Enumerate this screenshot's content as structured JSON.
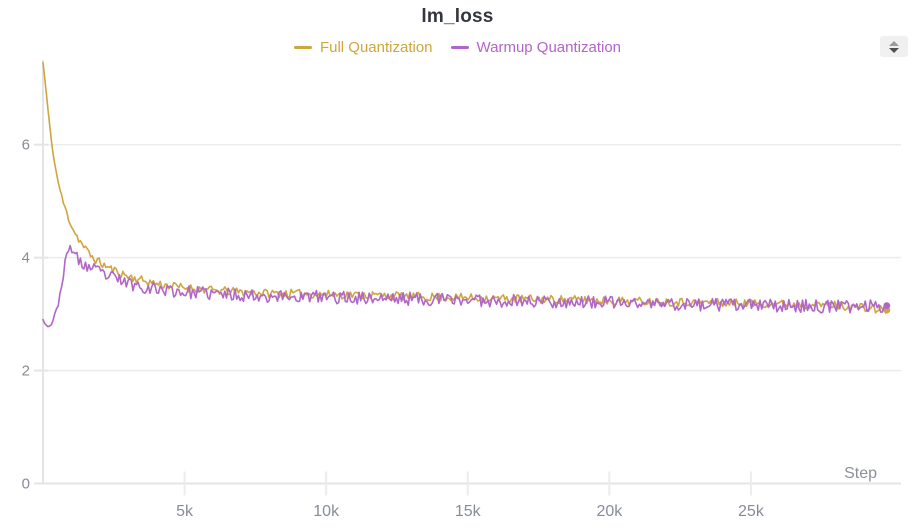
{
  "chart_data": {
    "type": "line",
    "title": "lm_loss",
    "xlabel": "Step",
    "xlim": [
      0,
      30300
    ],
    "ylim": [
      0,
      7.5
    ],
    "grid_on": true,
    "legend_position": "top-center",
    "x_ticks": [
      {
        "value": 5000,
        "label": "5k"
      },
      {
        "value": 10000,
        "label": "10k"
      },
      {
        "value": 15000,
        "label": "15k"
      },
      {
        "value": 20000,
        "label": "20k"
      },
      {
        "value": 25000,
        "label": "25k"
      }
    ],
    "y_ticks": [
      {
        "value": 0,
        "label": "0"
      },
      {
        "value": 2,
        "label": "2"
      },
      {
        "value": 4,
        "label": "4"
      },
      {
        "value": 6,
        "label": "6"
      }
    ],
    "colors": {
      "grid": "#ececec",
      "axis": "#e4e4e7",
      "tick_label": "#878c96",
      "axis_label": "#8a8f98",
      "title": "#33373d"
    },
    "series": [
      {
        "name": "Full Quantization",
        "color": "#cfa53d",
        "noise_amp": 0.075,
        "noise_seed": 11,
        "end_dot": true,
        "points": [
          [
            0,
            7.45
          ],
          [
            100,
            7.0
          ],
          [
            200,
            6.5
          ],
          [
            300,
            6.05
          ],
          [
            400,
            5.7
          ],
          [
            500,
            5.42
          ],
          [
            600,
            5.2
          ],
          [
            700,
            5.0
          ],
          [
            800,
            4.85
          ],
          [
            900,
            4.7
          ],
          [
            1000,
            4.58
          ],
          [
            1100,
            4.47
          ],
          [
            1200,
            4.38
          ],
          [
            1300,
            4.3
          ],
          [
            1400,
            4.22
          ],
          [
            1500,
            4.15
          ],
          [
            1700,
            4.03
          ],
          [
            1900,
            3.95
          ],
          [
            2100,
            3.88
          ],
          [
            2400,
            3.8
          ],
          [
            2700,
            3.73
          ],
          [
            3000,
            3.67
          ],
          [
            3500,
            3.6
          ],
          [
            4000,
            3.54
          ],
          [
            4500,
            3.5
          ],
          [
            5000,
            3.47
          ],
          [
            6000,
            3.42
          ],
          [
            7000,
            3.39
          ],
          [
            8000,
            3.37
          ],
          [
            9000,
            3.36
          ],
          [
            10000,
            3.35
          ],
          [
            12000,
            3.33
          ],
          [
            14000,
            3.3
          ],
          [
            16000,
            3.28
          ],
          [
            18000,
            3.26
          ],
          [
            20000,
            3.24
          ],
          [
            22000,
            3.22
          ],
          [
            24000,
            3.2
          ],
          [
            26000,
            3.18
          ],
          [
            28000,
            3.16
          ],
          [
            29800,
            3.07
          ]
        ]
      },
      {
        "name": "Warmup Quantization",
        "color": "#b265c8",
        "noise_amp": 0.115,
        "noise_seed": 23,
        "end_dot": true,
        "points": [
          [
            0,
            2.9
          ],
          [
            100,
            2.8
          ],
          [
            200,
            2.78
          ],
          [
            300,
            2.83
          ],
          [
            400,
            2.95
          ],
          [
            500,
            3.1
          ],
          [
            600,
            3.35
          ],
          [
            700,
            3.65
          ],
          [
            800,
            3.95
          ],
          [
            900,
            4.12
          ],
          [
            1000,
            4.2
          ],
          [
            1100,
            4.08
          ],
          [
            1200,
            3.98
          ],
          [
            1300,
            3.92
          ],
          [
            1400,
            3.88
          ],
          [
            1600,
            3.83
          ],
          [
            1800,
            3.79
          ],
          [
            2000,
            3.74
          ],
          [
            2300,
            3.67
          ],
          [
            2600,
            3.62
          ],
          [
            3000,
            3.55
          ],
          [
            3500,
            3.49
          ],
          [
            4000,
            3.45
          ],
          [
            5000,
            3.39
          ],
          [
            6000,
            3.36
          ],
          [
            7000,
            3.34
          ],
          [
            8000,
            3.32
          ],
          [
            10000,
            3.3
          ],
          [
            12000,
            3.28
          ],
          [
            14000,
            3.26
          ],
          [
            16000,
            3.24
          ],
          [
            18000,
            3.22
          ],
          [
            20000,
            3.2
          ],
          [
            22000,
            3.18
          ],
          [
            24000,
            3.16
          ],
          [
            26000,
            3.15
          ],
          [
            28000,
            3.13
          ],
          [
            29800,
            3.15
          ]
        ]
      }
    ]
  },
  "stepper": {
    "tooltip": "resize-panel"
  }
}
